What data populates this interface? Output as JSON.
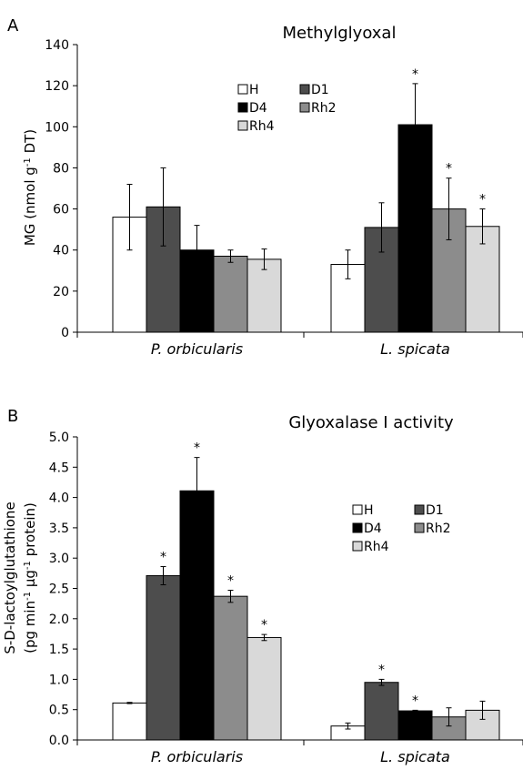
{
  "chart_data": [
    {
      "type": "bar",
      "panel_label": "A",
      "title": "Methylglyoxal",
      "ylabel_main": "MG (nmol g",
      "ylabel_sup": "-1",
      "ylabel_tail": " DT)",
      "ylim": [
        0,
        140
      ],
      "yticks": [
        "0",
        "20",
        "40",
        "60",
        "80",
        "100",
        "120",
        "140"
      ],
      "categories": [
        "P. orbicularis",
        "L. spicata"
      ],
      "series": [
        {
          "name": "H",
          "color": "#ffffff",
          "values": [
            56,
            33
          ],
          "errors": [
            16,
            7
          ],
          "stars": [
            false,
            false
          ]
        },
        {
          "name": "D1",
          "color": "#4d4d4d",
          "values": [
            61,
            51
          ],
          "errors": [
            19,
            12
          ],
          "stars": [
            false,
            false
          ]
        },
        {
          "name": "D4",
          "color": "#000000",
          "values": [
            40,
            101
          ],
          "errors": [
            12,
            20
          ],
          "stars": [
            false,
            true
          ]
        },
        {
          "name": "Rh2",
          "color": "#8c8c8c",
          "values": [
            37,
            60
          ],
          "errors": [
            3,
            15
          ],
          "stars": [
            false,
            true
          ]
        },
        {
          "name": "Rh4",
          "color": "#d9d9d9",
          "values": [
            35.5,
            51.5
          ],
          "errors": [
            5,
            8.5
          ],
          "stars": [
            false,
            true
          ]
        }
      ],
      "legend_position": "top-center"
    },
    {
      "type": "bar",
      "panel_label": "B",
      "title": "Glyoxalase I activity",
      "ylabel_line1": "S-D-lactoylglutathione",
      "ylabel_line2_a": "(pg min",
      "ylabel_line2_sup1": "-1",
      "ylabel_line2_b": " µg",
      "ylabel_line2_sup2": "-1",
      "ylabel_line2_c": " protein)",
      "ylim": [
        0,
        5
      ],
      "yticks": [
        "0.0",
        "0.5",
        "1.0",
        "1.5",
        "2.0",
        "2.5",
        "3.0",
        "3.5",
        "4.0",
        "4.5",
        "5.0"
      ],
      "categories": [
        "P. orbicularis",
        "L. spicata"
      ],
      "series": [
        {
          "name": "H",
          "color": "#ffffff",
          "values": [
            0.61,
            0.23
          ],
          "errors": [
            0.01,
            0.05
          ],
          "stars": [
            false,
            false
          ]
        },
        {
          "name": "D1",
          "color": "#4d4d4d",
          "values": [
            2.71,
            0.95
          ],
          "errors": [
            0.15,
            0.05
          ],
          "stars": [
            true,
            true
          ]
        },
        {
          "name": "D4",
          "color": "#000000",
          "values": [
            4.11,
            0.48
          ],
          "errors": [
            0.55,
            0.01
          ],
          "stars": [
            true,
            true
          ]
        },
        {
          "name": "Rh2",
          "color": "#8c8c8c",
          "values": [
            2.37,
            0.38
          ],
          "errors": [
            0.1,
            0.15
          ],
          "stars": [
            true,
            false
          ]
        },
        {
          "name": "Rh4",
          "color": "#d9d9d9",
          "values": [
            1.69,
            0.49
          ],
          "errors": [
            0.05,
            0.15
          ],
          "stars": [
            true,
            false
          ]
        }
      ],
      "legend_position": "right"
    }
  ]
}
